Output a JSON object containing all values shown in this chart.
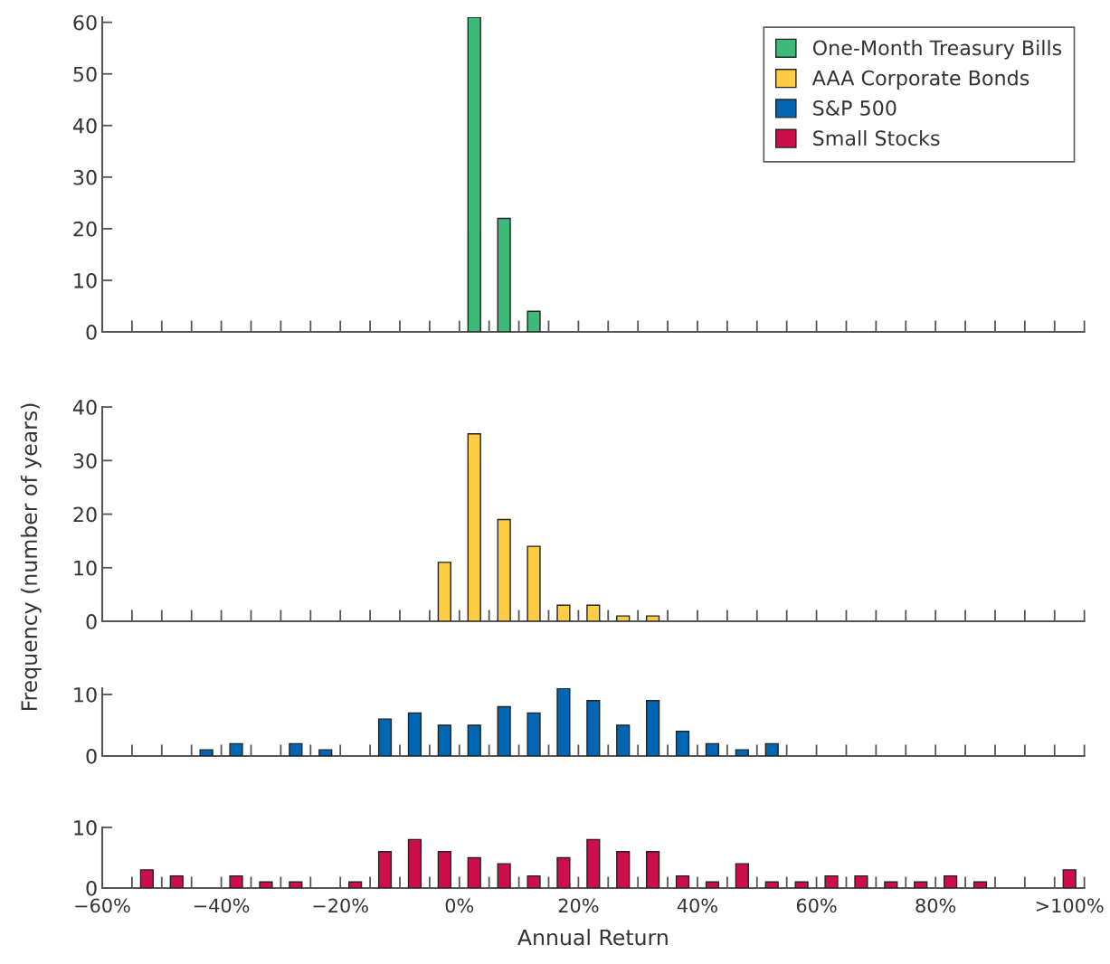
{
  "chart_data": [
    {
      "type": "histogram",
      "bins": [
        -55,
        -50,
        -45,
        -40,
        -35,
        -30,
        -25,
        -20,
        -15,
        -10,
        -5,
        0,
        5,
        10,
        15,
        20,
        25,
        30,
        35,
        40,
        45,
        50,
        55,
        60,
        65,
        70,
        75,
        80,
        85,
        90,
        95,
        100,
        105
      ],
      "series": [
        {
          "name": "One-Month Treasury Bills",
          "color": "#3dba78",
          "values": [
            0,
            0,
            0,
            0,
            0,
            0,
            0,
            0,
            0,
            0,
            0,
            61,
            22,
            4,
            0,
            0,
            0,
            0,
            0,
            0,
            0,
            0,
            0,
            0,
            0,
            0,
            0,
            0,
            0,
            0,
            0,
            0
          ]
        }
      ],
      "xlim": [
        -60,
        105
      ],
      "ylim": [
        0,
        61
      ],
      "yticks": [
        0,
        10,
        20,
        30,
        40,
        50,
        60
      ],
      "xticks": [
        {
          "value": -55,
          "label": null
        },
        {
          "value": -50,
          "label": null
        },
        {
          "value": -45,
          "label": null
        },
        {
          "value": -40,
          "label": null
        },
        {
          "value": -35,
          "label": null
        },
        {
          "value": -30,
          "label": null
        },
        {
          "value": -25,
          "label": null
        },
        {
          "value": -20,
          "label": null
        },
        {
          "value": -15,
          "label": null
        },
        {
          "value": -10,
          "label": null
        },
        {
          "value": -5,
          "label": null
        },
        {
          "value": 0,
          "label": null
        },
        {
          "value": 5,
          "label": null
        },
        {
          "value": 10,
          "label": null
        },
        {
          "value": 15,
          "label": null
        },
        {
          "value": 20,
          "label": null
        },
        {
          "value": 25,
          "label": null
        },
        {
          "value": 30,
          "label": null
        },
        {
          "value": 35,
          "label": null
        },
        {
          "value": 40,
          "label": null
        },
        {
          "value": 45,
          "label": null
        },
        {
          "value": 50,
          "label": null
        },
        {
          "value": 55,
          "label": null
        },
        {
          "value": 60,
          "label": null
        },
        {
          "value": 65,
          "label": null
        },
        {
          "value": 70,
          "label": null
        },
        {
          "value": 75,
          "label": null
        },
        {
          "value": 80,
          "label": null
        },
        {
          "value": 85,
          "label": null
        },
        {
          "value": 90,
          "label": null
        },
        {
          "value": 95,
          "label": null
        },
        {
          "value": 100,
          "label": null
        },
        {
          "value": 105,
          "label": null
        }
      ],
      "tick_labels": "y",
      "legend": "top right",
      "grid": false
    },
    {
      "type": "histogram",
      "bins": [
        -55,
        -50,
        -45,
        -40,
        -35,
        -30,
        -25,
        -20,
        -15,
        -10,
        -5,
        0,
        5,
        10,
        15,
        20,
        25,
        30,
        35,
        40,
        45,
        50,
        55,
        60,
        65,
        70,
        75,
        80,
        85,
        90,
        95,
        100,
        105
      ],
      "series": [
        {
          "name": "AAA Corporate Bonds",
          "color": "#ffcc44",
          "values": [
            0,
            0,
            0,
            0,
            0,
            0,
            0,
            0,
            0,
            0,
            11,
            35,
            19,
            14,
            3,
            3,
            1,
            1,
            0,
            0,
            0,
            0,
            0,
            0,
            0,
            0,
            0,
            0,
            0,
            0,
            0,
            0
          ]
        }
      ],
      "xlim": [
        -60,
        105
      ],
      "ylim": [
        0,
        40
      ],
      "yticks": [
        0,
        10,
        20,
        30,
        40
      ],
      "xticks": [
        {
          "value": -55,
          "label": null
        },
        {
          "value": -50,
          "label": null
        },
        {
          "value": -45,
          "label": null
        },
        {
          "value": -40,
          "label": null
        },
        {
          "value": -35,
          "label": null
        },
        {
          "value": -30,
          "label": null
        },
        {
          "value": -25,
          "label": null
        },
        {
          "value": -20,
          "label": null
        },
        {
          "value": -15,
          "label": null
        },
        {
          "value": -10,
          "label": null
        },
        {
          "value": -5,
          "label": null
        },
        {
          "value": 0,
          "label": null
        },
        {
          "value": 5,
          "label": null
        },
        {
          "value": 10,
          "label": null
        },
        {
          "value": 15,
          "label": null
        },
        {
          "value": 20,
          "label": null
        },
        {
          "value": 25,
          "label": null
        },
        {
          "value": 30,
          "label": null
        },
        {
          "value": 35,
          "label": null
        },
        {
          "value": 40,
          "label": null
        },
        {
          "value": 45,
          "label": null
        },
        {
          "value": 50,
          "label": null
        },
        {
          "value": 55,
          "label": null
        },
        {
          "value": 60,
          "label": null
        },
        {
          "value": 65,
          "label": null
        },
        {
          "value": 70,
          "label": null
        },
        {
          "value": 75,
          "label": null
        },
        {
          "value": 80,
          "label": null
        },
        {
          "value": 85,
          "label": null
        },
        {
          "value": 90,
          "label": null
        },
        {
          "value": 95,
          "label": null
        },
        {
          "value": 100,
          "label": null
        },
        {
          "value": 105,
          "label": null
        }
      ],
      "tick_labels": "y",
      "ylabel": "Frequency (number of years)",
      "grid": false
    },
    {
      "type": "histogram",
      "bins": [
        -55,
        -50,
        -45,
        -40,
        -35,
        -30,
        -25,
        -20,
        -15,
        -10,
        -5,
        0,
        5,
        10,
        15,
        20,
        25,
        30,
        35,
        40,
        45,
        50,
        55,
        60,
        65,
        70,
        75,
        80,
        85,
        90,
        95,
        100,
        105
      ],
      "series": [
        {
          "name": "S&P 500",
          "color": "#0066b3",
          "values": [
            0,
            0,
            1,
            2,
            0,
            2,
            1,
            0,
            6,
            7,
            5,
            5,
            8,
            7,
            11,
            9,
            5,
            9,
            4,
            2,
            1,
            2,
            0,
            0,
            0,
            0,
            0,
            0,
            0,
            0,
            0,
            0
          ]
        }
      ],
      "xlim": [
        -60,
        105
      ],
      "ylim": [
        0,
        11
      ],
      "yticks": [
        0,
        10
      ],
      "xticks": [
        {
          "value": -55,
          "label": null
        },
        {
          "value": -50,
          "label": null
        },
        {
          "value": -45,
          "label": null
        },
        {
          "value": -40,
          "label": null
        },
        {
          "value": -35,
          "label": null
        },
        {
          "value": -30,
          "label": null
        },
        {
          "value": -25,
          "label": null
        },
        {
          "value": -20,
          "label": null
        },
        {
          "value": -15,
          "label": null
        },
        {
          "value": -10,
          "label": null
        },
        {
          "value": -5,
          "label": null
        },
        {
          "value": 0,
          "label": null
        },
        {
          "value": 5,
          "label": null
        },
        {
          "value": 10,
          "label": null
        },
        {
          "value": 15,
          "label": null
        },
        {
          "value": 20,
          "label": null
        },
        {
          "value": 25,
          "label": null
        },
        {
          "value": 30,
          "label": null
        },
        {
          "value": 35,
          "label": null
        },
        {
          "value": 40,
          "label": null
        },
        {
          "value": 45,
          "label": null
        },
        {
          "value": 50,
          "label": null
        },
        {
          "value": 55,
          "label": null
        },
        {
          "value": 60,
          "label": null
        },
        {
          "value": 65,
          "label": null
        },
        {
          "value": 70,
          "label": null
        },
        {
          "value": 75,
          "label": null
        },
        {
          "value": 80,
          "label": null
        },
        {
          "value": 85,
          "label": null
        },
        {
          "value": 90,
          "label": null
        },
        {
          "value": 95,
          "label": null
        },
        {
          "value": 100,
          "label": null
        },
        {
          "value": 105,
          "label": null
        }
      ],
      "tick_labels": "y",
      "grid": false
    },
    {
      "type": "histogram",
      "bins": [
        -55,
        -50,
        -45,
        -40,
        -35,
        -30,
        -25,
        -20,
        -15,
        -10,
        -5,
        0,
        5,
        10,
        15,
        20,
        25,
        30,
        35,
        40,
        45,
        50,
        55,
        60,
        65,
        70,
        75,
        80,
        85,
        90,
        95,
        100,
        105
      ],
      "series": [
        {
          "name": "Small Stocks",
          "color": "#cc0f4a",
          "values": [
            3,
            2,
            0,
            2,
            1,
            1,
            0,
            1,
            6,
            8,
            6,
            5,
            4,
            2,
            5,
            8,
            6,
            6,
            2,
            1,
            4,
            1,
            1,
            2,
            2,
            1,
            1,
            2,
            1,
            0,
            0,
            3
          ]
        }
      ],
      "xlim": [
        -60,
        105
      ],
      "ylim": [
        0,
        10
      ],
      "yticks": [
        0,
        10
      ],
      "xticks": [
        {
          "value": -60,
          "label": "−60%"
        },
        {
          "value": -55,
          "label": null
        },
        {
          "value": -50,
          "label": null
        },
        {
          "value": -45,
          "label": null
        },
        {
          "value": -40,
          "label": "−40%"
        },
        {
          "value": -35,
          "label": null
        },
        {
          "value": -30,
          "label": null
        },
        {
          "value": -25,
          "label": null
        },
        {
          "value": -20,
          "label": "−20%"
        },
        {
          "value": -15,
          "label": null
        },
        {
          "value": -10,
          "label": null
        },
        {
          "value": -5,
          "label": null
        },
        {
          "value": 0,
          "label": "0%"
        },
        {
          "value": 5,
          "label": null
        },
        {
          "value": 10,
          "label": null
        },
        {
          "value": 15,
          "label": null
        },
        {
          "value": 20,
          "label": "20%"
        },
        {
          "value": 25,
          "label": null
        },
        {
          "value": 30,
          "label": null
        },
        {
          "value": 35,
          "label": null
        },
        {
          "value": 40,
          "label": "40%"
        },
        {
          "value": 45,
          "label": null
        },
        {
          "value": 50,
          "label": null
        },
        {
          "value": 55,
          "label": null
        },
        {
          "value": 60,
          "label": "60%"
        },
        {
          "value": 65,
          "label": null
        },
        {
          "value": 70,
          "label": null
        },
        {
          "value": 75,
          "label": null
        },
        {
          "value": 80,
          "label": "80%"
        },
        {
          "value": 85,
          "label": null
        },
        {
          "value": 90,
          "label": null
        },
        {
          "value": 95,
          "label": null
        },
        {
          "value": 100,
          "label": null
        },
        {
          "value": 102.5,
          "label": ">100%"
        },
        {
          "value": 105,
          "label": null
        }
      ],
      "xlabel": "Annual Return",
      "grid": false
    }
  ]
}
